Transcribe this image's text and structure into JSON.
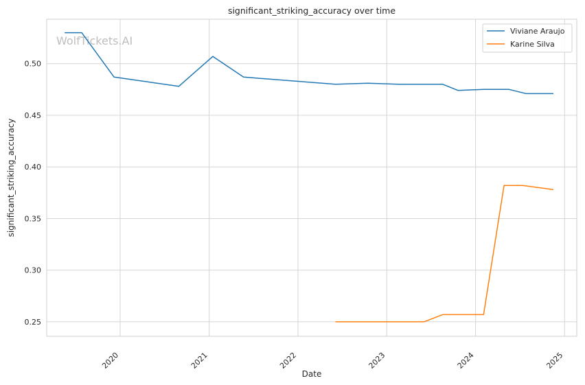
{
  "watermark": "WolfTickets.AI",
  "chart_data": {
    "type": "line",
    "title": "significant_striking_accuracy over time",
    "xlabel": "Date",
    "ylabel": "significant_striking_accuracy",
    "xlim": [
      "2019-03-05",
      "2025-02-20"
    ],
    "ylim": [
      0.236,
      0.543
    ],
    "x_ticks": [
      {
        "date": "2020-01-01",
        "label": "2020"
      },
      {
        "date": "2021-01-01",
        "label": "2021"
      },
      {
        "date": "2022-01-01",
        "label": "2022"
      },
      {
        "date": "2023-01-01",
        "label": "2023"
      },
      {
        "date": "2024-01-01",
        "label": "2024"
      },
      {
        "date": "2025-01-01",
        "label": "2025"
      }
    ],
    "y_ticks": [
      {
        "value": 0.25,
        "label": "0.25"
      },
      {
        "value": 0.3,
        "label": "0.30"
      },
      {
        "value": 0.35,
        "label": "0.35"
      },
      {
        "value": 0.4,
        "label": "0.40"
      },
      {
        "value": 0.45,
        "label": "0.45"
      },
      {
        "value": 0.5,
        "label": "0.50"
      }
    ],
    "grid": true,
    "legend_position": "top-right",
    "series": [
      {
        "name": "Viviane Araujo",
        "color": "#1f77b4",
        "x": [
          "2019-05-18",
          "2019-07-27",
          "2019-12-07",
          "2020-08-29",
          "2021-01-16",
          "2021-05-22",
          "2022-06-04",
          "2022-10-15",
          "2023-02-18",
          "2023-08-19",
          "2023-10-21",
          "2024-02-03",
          "2024-05-18",
          "2024-07-27",
          "2024-11-16"
        ],
        "y": [
          0.53,
          0.53,
          0.487,
          0.478,
          0.507,
          0.487,
          0.48,
          0.481,
          0.48,
          0.48,
          0.474,
          0.475,
          0.475,
          0.471,
          0.471
        ]
      },
      {
        "name": "Karine Silva",
        "color": "#ff7f0e",
        "x": [
          "2022-06-04",
          "2023-06-03",
          "2023-08-19",
          "2024-02-03",
          "2024-04-27",
          "2024-07-13",
          "2024-11-16"
        ],
        "y": [
          0.25,
          0.25,
          0.257,
          0.257,
          0.382,
          0.382,
          0.378
        ]
      }
    ]
  }
}
